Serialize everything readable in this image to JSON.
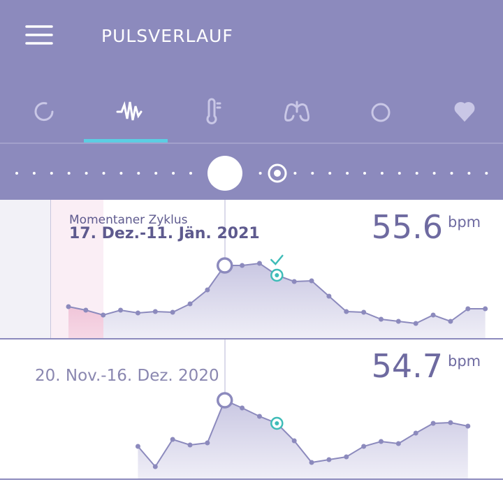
{
  "header": {
    "title": "PULSVERLAUF"
  },
  "chart_data": [
    {
      "type": "line",
      "label": "Momentaner Zyklus",
      "subtitle": "17. Dez.-11. Jän. 2021",
      "value": 55.6,
      "unit": "bpm",
      "values": [
        54.5,
        54.0,
        53.3,
        54.0,
        53.6,
        53.8,
        53.7,
        54.9,
        56.9,
        60.4,
        60.4,
        60.7,
        59.0,
        58.1,
        58.2,
        56.0,
        53.8,
        53.7,
        52.7,
        52.4,
        52.1,
        53.3,
        52.4,
        54.2,
        54.2
      ],
      "ylim": [
        50,
        62
      ],
      "color": "#8c8abd",
      "highlight": 9,
      "check": 12
    },
    {
      "type": "line",
      "subtitle": "20. Nov.-16. Dez. 2020",
      "value": 54.7,
      "unit": "bpm",
      "values": [
        null,
        null,
        null,
        null,
        54.6,
        51.7,
        55.6,
        54.8,
        55.1,
        61.2,
        60.1,
        58.9,
        57.9,
        55.4,
        52.3,
        52.7,
        53.1,
        54.6,
        55.3,
        55.0,
        56.5,
        57.9,
        58.0,
        57.5,
        null
      ],
      "ylim": [
        50,
        62
      ],
      "color": "#8c8abd",
      "highlight": 9,
      "check": 12
    }
  ]
}
